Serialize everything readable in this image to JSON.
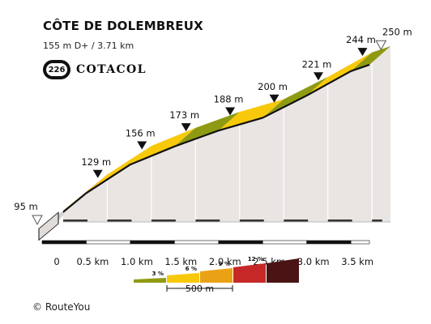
{
  "header": {
    "title": "CÔTE DE DOLEMBREUX",
    "subtitle": "155 m D+ / 3.71 km",
    "badge_number": "226",
    "badge_text": "COTACOL"
  },
  "chart_data": {
    "type": "area",
    "x_unit": "km",
    "y_unit": "m",
    "points": [
      {
        "km": 0,
        "elevation": 95,
        "label": "95 m",
        "marker": "start"
      },
      {
        "km": 0.5,
        "elevation": 129,
        "label": "129 m",
        "marker": "filled"
      },
      {
        "km": 1.0,
        "elevation": 156,
        "label": "156 m",
        "marker": "filled"
      },
      {
        "km": 1.5,
        "elevation": 173,
        "label": "173 m",
        "marker": "filled"
      },
      {
        "km": 2.0,
        "elevation": 188,
        "label": "188 m",
        "marker": "filled"
      },
      {
        "km": 2.5,
        "elevation": 200,
        "label": "200 m",
        "marker": "filled"
      },
      {
        "km": 3.0,
        "elevation": 221,
        "label": "221 m",
        "marker": "filled"
      },
      {
        "km": 3.5,
        "elevation": 244,
        "label": "244 m",
        "marker": "filled"
      },
      {
        "km": 3.71,
        "elevation": 250,
        "label": "250 m",
        "marker": "end"
      }
    ],
    "x_ticks": [
      "0",
      "0.5 km",
      "1.0 km",
      "1.5 km",
      "2.0 km",
      "2.5 km",
      "3.0 km",
      "3.5 km"
    ],
    "segment_colors": [
      "#eaa214",
      "#f7c90a",
      "#f7c90a",
      "#8e9b12",
      "#f7c90a",
      "#8e9b12",
      "#f7c90a",
      "#8e9b12"
    ],
    "ground_color": "#e9e5e3",
    "legend": {
      "items": [
        {
          "label": "3 %",
          "color": "#8e9b12"
        },
        {
          "label": "6 %",
          "color": "#f7c90a"
        },
        {
          "label": "9 %",
          "color": "#eaa214"
        },
        {
          "label": "12 %",
          "color": "#c62828"
        },
        {
          "label": "",
          "color": "#4a1414"
        }
      ],
      "scale_label": "500 m"
    }
  },
  "footer": {
    "credit": "RouteYou",
    "copyright_symbol": "©"
  }
}
